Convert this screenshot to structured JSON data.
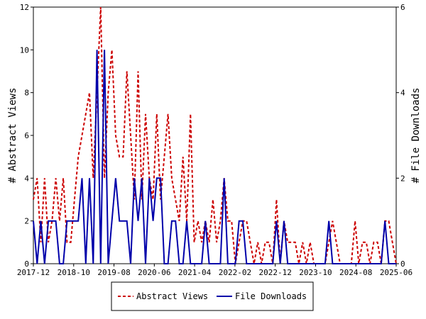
{
  "chart_data": {
    "type": "line",
    "ylabel_left": "# Abstract Views",
    "ylabel_right": "# File Downloads",
    "x_tick_labels": [
      "2017-12",
      "2018-10",
      "2019-08",
      "2020-06",
      "2021-04",
      "2022-02",
      "2022-12",
      "2023-10",
      "2024-08",
      "2025-06"
    ],
    "y_left_ticks": [
      "0",
      "2",
      "4",
      "6",
      "8",
      "10",
      "12"
    ],
    "y_right_ticks": [
      "0",
      "2",
      "4",
      "6"
    ],
    "ylim_left": [
      0,
      12
    ],
    "ylim_right": [
      0,
      6
    ],
    "series": [
      {
        "name": "Abstract Views",
        "axis": "left",
        "color": "#cc0000",
        "style": "dashed",
        "values": [
          3,
          4,
          1,
          4,
          1,
          2,
          4,
          2,
          4,
          1,
          1,
          3,
          5,
          6,
          7,
          8,
          4,
          8,
          12,
          4,
          8,
          10,
          6,
          5,
          5,
          9,
          6,
          3,
          9,
          3,
          7,
          4,
          3,
          7,
          3,
          5,
          7,
          4,
          3,
          2,
          5,
          2,
          7,
          1,
          2,
          1,
          2,
          1,
          3,
          1,
          2,
          4,
          2,
          2,
          0,
          1,
          2,
          2,
          1,
          0,
          1,
          0,
          1,
          1,
          0,
          3,
          0,
          2,
          1,
          1,
          1,
          0,
          1,
          0,
          1,
          0,
          0,
          0,
          0,
          1,
          2,
          1,
          0,
          0,
          0,
          0,
          2,
          0,
          1,
          1,
          0,
          1,
          1,
          0,
          2,
          2,
          1,
          0
        ]
      },
      {
        "name": "File Downloads",
        "axis": "right",
        "color": "#0000aa",
        "style": "solid",
        "values": [
          1,
          0,
          1,
          0,
          1,
          1,
          1,
          0,
          0,
          1,
          1,
          1,
          1,
          2,
          0,
          2,
          0,
          5,
          0,
          5,
          0,
          1,
          2,
          1,
          1,
          1,
          0,
          2,
          1,
          2,
          0,
          2,
          1,
          2,
          2,
          0,
          0,
          1,
          1,
          0,
          0,
          1,
          0,
          0,
          0,
          0,
          1,
          0,
          0,
          0,
          0,
          2,
          0,
          0,
          0,
          1,
          1,
          0,
          0,
          0,
          0,
          0,
          0,
          0,
          0,
          1,
          0,
          1,
          0,
          0,
          0,
          0,
          0,
          0,
          0,
          0,
          0,
          0,
          0,
          1,
          0,
          0,
          0,
          0,
          0,
          0,
          0,
          0,
          0,
          0,
          0,
          0,
          0,
          0,
          1,
          0,
          0,
          0
        ]
      }
    ],
    "legend_position": "bottom-center",
    "grid": false
  }
}
